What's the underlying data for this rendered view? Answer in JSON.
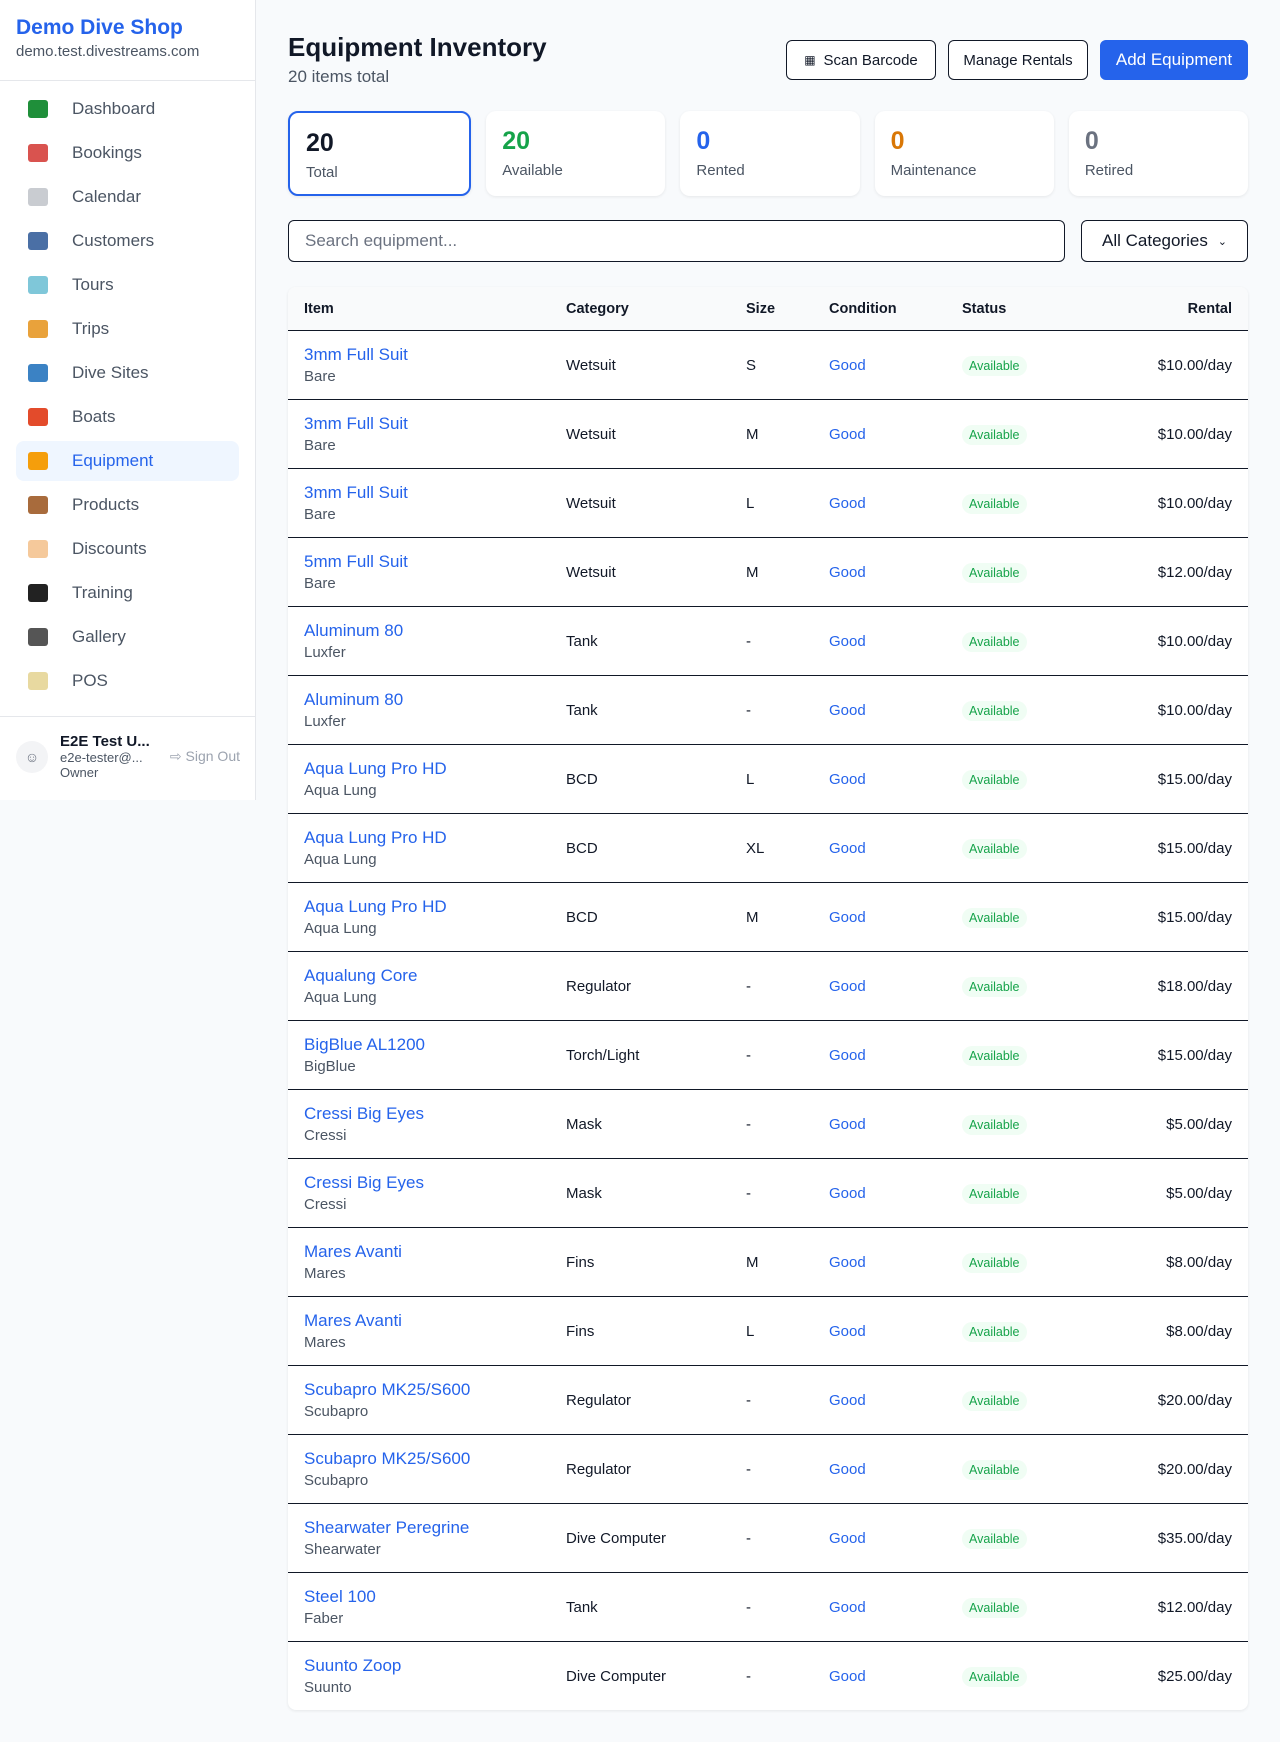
{
  "sidebar": {
    "shop_name": "Demo Dive Shop",
    "domain": "demo.test.divestreams.com",
    "items": [
      {
        "label": "Dashboard",
        "icon": "bar-chart-icon",
        "color": "#1f8f3a"
      },
      {
        "label": "Bookings",
        "icon": "calendar-17-icon",
        "color": "#d9534f"
      },
      {
        "label": "Calendar",
        "icon": "spiral-calendar-icon",
        "color": "#c9ccd1"
      },
      {
        "label": "Customers",
        "icon": "people-icon",
        "color": "#4a6fa5"
      },
      {
        "label": "Tours",
        "icon": "island-icon",
        "color": "#7fc7d9"
      },
      {
        "label": "Trips",
        "icon": "speedboat-icon",
        "color": "#e9a23b"
      },
      {
        "label": "Dive Sites",
        "icon": "wave-icon",
        "color": "#3b82c4"
      },
      {
        "label": "Boats",
        "icon": "sailboat-icon",
        "color": "#e34b2b"
      },
      {
        "label": "Equipment",
        "icon": "diving-mask-icon",
        "color": "#f59e0b",
        "active": true
      },
      {
        "label": "Products",
        "icon": "package-icon",
        "color": "#a86b3c"
      },
      {
        "label": "Discounts",
        "icon": "tag-icon",
        "color": "#f5c99b"
      },
      {
        "label": "Training",
        "icon": "graduation-cap-icon",
        "color": "#222222"
      },
      {
        "label": "Gallery",
        "icon": "camera-flash-icon",
        "color": "#555555"
      },
      {
        "label": "POS",
        "icon": "credit-card-icon",
        "color": "#e8d9a0"
      }
    ],
    "user": {
      "name": "E2E Test U...",
      "email": "e2e-tester@...",
      "role": "Owner",
      "sign_out": "Sign Out"
    }
  },
  "header": {
    "title": "Equipment Inventory",
    "subtitle": "20 items total",
    "scan": "Scan Barcode",
    "manage": "Manage Rentals",
    "add": "Add Equipment"
  },
  "stats": [
    {
      "value": "20",
      "label": "Total",
      "color": "#111827"
    },
    {
      "value": "20",
      "label": "Available",
      "color": "#16a34a"
    },
    {
      "value": "0",
      "label": "Rented",
      "color": "#2563eb"
    },
    {
      "value": "0",
      "label": "Maintenance",
      "color": "#d97706"
    },
    {
      "value": "0",
      "label": "Retired",
      "color": "#6b7280"
    }
  ],
  "filters": {
    "search_placeholder": "Search equipment...",
    "category": "All Categories"
  },
  "table": {
    "columns": [
      "Item",
      "Category",
      "Size",
      "Condition",
      "Status",
      "Rental"
    ],
    "rows": [
      [
        "3mm Full Suit",
        "Bare",
        "Wetsuit",
        "S",
        "Good",
        "Available",
        "$10.00/day"
      ],
      [
        "3mm Full Suit",
        "Bare",
        "Wetsuit",
        "M",
        "Good",
        "Available",
        "$10.00/day"
      ],
      [
        "3mm Full Suit",
        "Bare",
        "Wetsuit",
        "L",
        "Good",
        "Available",
        "$10.00/day"
      ],
      [
        "5mm Full Suit",
        "Bare",
        "Wetsuit",
        "M",
        "Good",
        "Available",
        "$12.00/day"
      ],
      [
        "Aluminum 80",
        "Luxfer",
        "Tank",
        "-",
        "Good",
        "Available",
        "$10.00/day"
      ],
      [
        "Aluminum 80",
        "Luxfer",
        "Tank",
        "-",
        "Good",
        "Available",
        "$10.00/day"
      ],
      [
        "Aqua Lung Pro HD",
        "Aqua Lung",
        "BCD",
        "L",
        "Good",
        "Available",
        "$15.00/day"
      ],
      [
        "Aqua Lung Pro HD",
        "Aqua Lung",
        "BCD",
        "XL",
        "Good",
        "Available",
        "$15.00/day"
      ],
      [
        "Aqua Lung Pro HD",
        "Aqua Lung",
        "BCD",
        "M",
        "Good",
        "Available",
        "$15.00/day"
      ],
      [
        "Aqualung Core",
        "Aqua Lung",
        "Regulator",
        "-",
        "Good",
        "Available",
        "$18.00/day"
      ],
      [
        "BigBlue AL1200",
        "BigBlue",
        "Torch/Light",
        "-",
        "Good",
        "Available",
        "$15.00/day"
      ],
      [
        "Cressi Big Eyes",
        "Cressi",
        "Mask",
        "-",
        "Good",
        "Available",
        "$5.00/day"
      ],
      [
        "Cressi Big Eyes",
        "Cressi",
        "Mask",
        "-",
        "Good",
        "Available",
        "$5.00/day"
      ],
      [
        "Mares Avanti",
        "Mares",
        "Fins",
        "M",
        "Good",
        "Available",
        "$8.00/day"
      ],
      [
        "Mares Avanti",
        "Mares",
        "Fins",
        "L",
        "Good",
        "Available",
        "$8.00/day"
      ],
      [
        "Scubapro MK25/S600",
        "Scubapro",
        "Regulator",
        "-",
        "Good",
        "Available",
        "$20.00/day"
      ],
      [
        "Scubapro MK25/S600",
        "Scubapro",
        "Regulator",
        "-",
        "Good",
        "Available",
        "$20.00/day"
      ],
      [
        "Shearwater Peregrine",
        "Shearwater",
        "Dive Computer",
        "-",
        "Good",
        "Available",
        "$35.00/day"
      ],
      [
        "Steel 100",
        "Faber",
        "Tank",
        "-",
        "Good",
        "Available",
        "$12.00/day"
      ],
      [
        "Suunto Zoop",
        "Suunto",
        "Dive Computer",
        "-",
        "Good",
        "Available",
        "$25.00/day"
      ]
    ]
  }
}
